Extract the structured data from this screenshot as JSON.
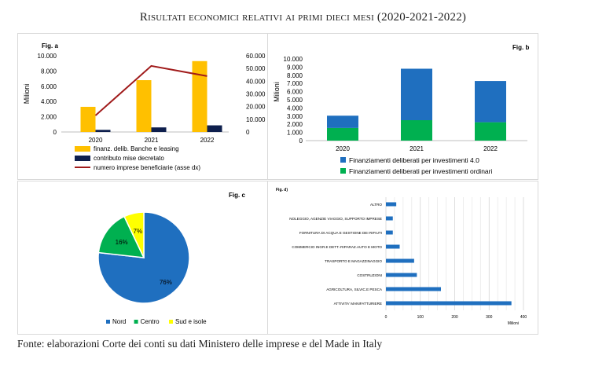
{
  "page": {
    "title": "Risultati economici relativi ai primi dieci mesi (2020-2021-2022)",
    "source": "Fonte: elaborazioni Corte dei conti su dati Ministero delle imprese e del Made in Italy"
  },
  "colors": {
    "gold": "#ffc000",
    "navy": "#0e1f4d",
    "darkred": "#a01a1a",
    "blue": "#1f6fbf",
    "green": "#00b050",
    "yellow": "#ffff00"
  },
  "chart_data": [
    {
      "id": "fig-a",
      "type": "bar",
      "panel_label": "Fig. a",
      "ylabel": "Milioni",
      "categories": [
        "2020",
        "2021",
        "2022"
      ],
      "ylim": [
        0,
        10000
      ],
      "y_ticks": [
        "0",
        "2.000",
        "4.000",
        "6.000",
        "8.000",
        "10.000"
      ],
      "y2lim": [
        0,
        60000
      ],
      "y2_ticks": [
        "0",
        "10.000",
        "20.000",
        "30.000",
        "40.000",
        "50.000",
        "60.000"
      ],
      "series": [
        {
          "name": "finanz. delib. Banche e leasing",
          "type": "bar",
          "values": [
            3300,
            6800,
            9300
          ],
          "color": "#ffc000"
        },
        {
          "name": "contributo mise decretato",
          "type": "bar",
          "values": [
            280,
            600,
            870
          ],
          "color": "#0e1f4d"
        },
        {
          "name": "numero imprese beneficiarie (asse dx)",
          "type": "line",
          "axis": "right",
          "values": [
            13000,
            52000,
            44000
          ],
          "color": "#a01a1a"
        }
      ]
    },
    {
      "id": "fig-b",
      "type": "bar",
      "stacked": true,
      "panel_label": "Fig. b",
      "ylabel": "Milioni",
      "categories": [
        "2020",
        "2021",
        "2022"
      ],
      "ylim": [
        0,
        10000
      ],
      "y_ticks": [
        "0",
        "1.000",
        "2.000",
        "3.000",
        "4.000",
        "5.000",
        "6.000",
        "7.000",
        "8.000",
        "9.000",
        "10.000"
      ],
      "series": [
        {
          "name": "Finanziamenti deliberati per investimenti ordinari",
          "values": [
            1550,
            2500,
            2250
          ],
          "color": "#00b050"
        },
        {
          "name": "Finanziamenti deliberati per investimenti 4.0",
          "values": [
            1500,
            6300,
            5050
          ],
          "color": "#1f6fbf"
        }
      ]
    },
    {
      "id": "fig-c",
      "type": "pie",
      "panel_label": "Fig. c",
      "slices": [
        {
          "label": "Nord",
          "value": 76,
          "text": "76%",
          "color": "#1f6fbf"
        },
        {
          "label": "Centro",
          "value": 16,
          "text": "16%",
          "color": "#00b050"
        },
        {
          "label": "Sud e isole",
          "value": 7,
          "text": "7%",
          "color": "#ffff00"
        }
      ]
    },
    {
      "id": "fig-d",
      "type": "bar",
      "orientation": "horizontal",
      "panel_label": "Fig. d)",
      "xlabel": "Milioni",
      "xlim": [
        0,
        400
      ],
      "x_ticks": [
        "0",
        "100",
        "200",
        "300",
        "400"
      ],
      "categories": [
        "ALTRO",
        "NOLEGGIO, AGENZIE VIAGGIO, SUPPORTO IMPRESE",
        "FORNITURA DI ACQUA E GESTIONE DEI RIFIUTI",
        "COMMERCIO INGR.E DETT.-RIPARAZ.AUTO E MOTO",
        "TRASPORTO E MAGAZZINAGGIO",
        "COSTRUZIONI",
        "AGRICOLTURA, SILVIC.E PESCA",
        "ATTIVITA' MANIFATTURIERE"
      ],
      "values": [
        30,
        20,
        20,
        40,
        82,
        90,
        160,
        365
      ],
      "color": "#1f6fbf"
    }
  ]
}
